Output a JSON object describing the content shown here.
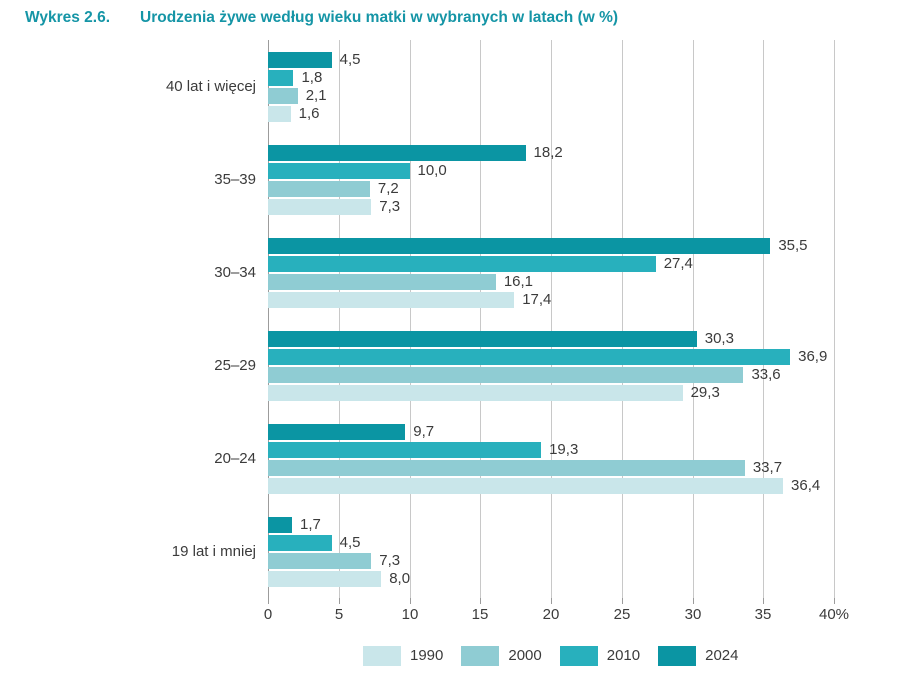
{
  "header": {
    "number": "Wykres 2.6.",
    "title": "Urodzenia żywe według wieku matki w wybranych w latach (w %)"
  },
  "chart_data": {
    "type": "bar",
    "orientation": "horizontal",
    "title": "Urodzenia żywe według wieku matki w wybranych w latach (w %)",
    "categories": [
      "40 lat i więcej",
      "35–39",
      "30–34",
      "25–29",
      "20–24",
      "19 lat i mniej"
    ],
    "series": [
      {
        "name": "2024",
        "color": "#0b95a3",
        "values": [
          4.5,
          18.2,
          35.5,
          30.3,
          9.7,
          1.7
        ],
        "labels": [
          "4,5",
          "18,2",
          "35,5",
          "30,3",
          "9,7",
          "1,7"
        ]
      },
      {
        "name": "2010",
        "color": "#28b0bd",
        "values": [
          1.8,
          10.0,
          27.4,
          36.9,
          19.3,
          4.5
        ],
        "labels": [
          "1,8",
          "10,0",
          "27,4",
          "36,9",
          "19,3",
          "4,5"
        ]
      },
      {
        "name": "2000",
        "color": "#8fccd3",
        "values": [
          2.1,
          7.2,
          16.1,
          33.6,
          33.7,
          7.3
        ],
        "labels": [
          "2,1",
          "7,2",
          "16,1",
          "33,6",
          "33,7",
          "7,3"
        ]
      },
      {
        "name": "1990",
        "color": "#c9e6ea",
        "values": [
          1.6,
          7.3,
          17.4,
          29.3,
          36.4,
          8.0
        ],
        "labels": [
          "1,6",
          "7,3",
          "17,4",
          "29,3",
          "36,4",
          "8,0"
        ]
      }
    ],
    "x_ticks": [
      "0",
      "5",
      "10",
      "15",
      "20",
      "25",
      "30",
      "35",
      "40%"
    ],
    "xlim": [
      0,
      40
    ],
    "grid": true,
    "legend": {
      "position": "bottom",
      "items": [
        {
          "label": "1990",
          "color": "#c9e6ea"
        },
        {
          "label": "2000",
          "color": "#8fccd3"
        },
        {
          "label": "2010",
          "color": "#28b0bd"
        },
        {
          "label": "2024",
          "color": "#0b95a3"
        }
      ]
    },
    "colors": {
      "title": "#1595a6",
      "text": "#3b3b3b",
      "gridline": "#c8c8c8",
      "axis_line": "#9c9c9c"
    }
  }
}
